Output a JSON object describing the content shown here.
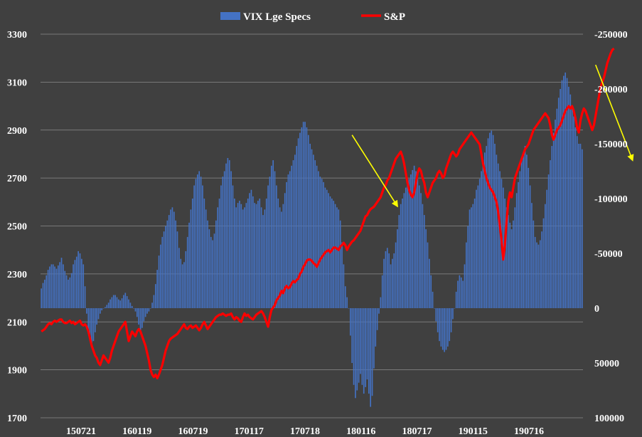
{
  "chart_data": {
    "type": "bar+line",
    "title": "",
    "xlabel": "",
    "ylabel": "",
    "x_ticks": [
      "150721",
      "160119",
      "160719",
      "170117",
      "170718",
      "180116",
      "180717",
      "190115",
      "190716"
    ],
    "left_axis": {
      "ylim": [
        1700,
        3300
      ],
      "ticks": [
        1700,
        1900,
        2100,
        2300,
        2500,
        2700,
        2900,
        3100,
        3300
      ]
    },
    "right_axis": {
      "ylim": [
        100000,
        -250000
      ],
      "inverted": true,
      "ticks": [
        100000,
        50000,
        0,
        -50000,
        -100000,
        -150000,
        -200000,
        -250000
      ],
      "tick_labels": [
        "100000",
        "50000",
        "0",
        "-50000",
        "-100000",
        "-150000",
        "-200000",
        "-250000"
      ]
    },
    "grid": true,
    "legend": "top-center",
    "series": [
      {
        "name": "VIX Lge Specs",
        "type": "bar",
        "axis": "right",
        "color": "#4472c4",
        "values": [
          -18000,
          -23000,
          -26000,
          -30000,
          -35000,
          -38000,
          -40000,
          -40000,
          -38000,
          -36000,
          -39000,
          -42000,
          -46000,
          -40000,
          -34000,
          -30000,
          -26000,
          -28000,
          -32000,
          -40000,
          -44000,
          -47000,
          -52000,
          -50000,
          -45000,
          -40000,
          -20000,
          5000,
          20000,
          30000,
          35000,
          30000,
          22000,
          15000,
          10000,
          5000,
          2000,
          0,
          -1000,
          -3000,
          -5000,
          -8000,
          -10000,
          -12000,
          -12000,
          -10000,
          -8000,
          -7000,
          -9000,
          -12000,
          -14000,
          -11000,
          -8000,
          -5000,
          -2000,
          0,
          3000,
          8000,
          15000,
          20000,
          18000,
          12000,
          8000,
          5000,
          3000,
          0,
          -5000,
          -12000,
          -22000,
          -35000,
          -48000,
          -58000,
          -65000,
          -70000,
          -75000,
          -80000,
          -85000,
          -90000,
          -92000,
          -88000,
          -80000,
          -70000,
          -55000,
          -45000,
          -40000,
          -42000,
          -52000,
          -65000,
          -78000,
          -90000,
          -100000,
          -112000,
          -118000,
          -122000,
          -125000,
          -120000,
          -112000,
          -100000,
          -90000,
          -80000,
          -72000,
          -65000,
          -62000,
          -68000,
          -80000,
          -92000,
          -100000,
          -112000,
          -120000,
          -125000,
          -132000,
          -137000,
          -135000,
          -125000,
          -112000,
          -100000,
          -92000,
          -96000,
          -98000,
          -95000,
          -90000,
          -92000,
          -96000,
          -100000,
          -105000,
          -108000,
          -102000,
          -96000,
          -95000,
          -98000,
          -100000,
          -92000,
          -85000,
          -90000,
          -100000,
          -112000,
          -120000,
          -130000,
          -135000,
          -125000,
          -112000,
          -100000,
          -92000,
          -88000,
          -95000,
          -105000,
          -115000,
          -122000,
          -125000,
          -130000,
          -135000,
          -140000,
          -148000,
          -155000,
          -160000,
          -165000,
          -170000,
          -170000,
          -165000,
          -158000,
          -150000,
          -145000,
          -140000,
          -135000,
          -130000,
          -125000,
          -120000,
          -118000,
          -115000,
          -110000,
          -108000,
          -105000,
          -102000,
          -100000,
          -98000,
          -95000,
          -92000,
          -90000,
          -80000,
          -60000,
          -40000,
          -20000,
          -10000,
          0,
          25000,
          50000,
          70000,
          82000,
          75000,
          68000,
          60000,
          70000,
          78000,
          72000,
          65000,
          78000,
          90000,
          80000,
          55000,
          35000,
          20000,
          5000,
          -10000,
          -30000,
          -45000,
          -52000,
          -55000,
          -50000,
          -40000,
          -45000,
          -50000,
          -60000,
          -72000,
          -85000,
          -95000,
          -100000,
          -105000,
          -110000,
          -115000,
          -118000,
          -122000,
          -126000,
          -130000,
          -125000,
          -118000,
          -112000,
          -105000,
          -95000,
          -85000,
          -72000,
          -60000,
          -45000,
          -30000,
          -15000,
          0,
          12000,
          22000,
          30000,
          35000,
          38000,
          40000,
          38000,
          35000,
          30000,
          22000,
          10000,
          0,
          -15000,
          -25000,
          -30000,
          -28000,
          -25000,
          -40000,
          -60000,
          -75000,
          -90000,
          -92000,
          -95000,
          -100000,
          -108000,
          -112000,
          -118000,
          -125000,
          -135000,
          -142000,
          -148000,
          -155000,
          -160000,
          -162000,
          -158000,
          -150000,
          -140000,
          -132000,
          -125000,
          -118000,
          -110000,
          -100000,
          -92000,
          -85000,
          -78000,
          -72000,
          -80000,
          -92000,
          -105000,
          -115000,
          -125000,
          -135000,
          -142000,
          -148000,
          -140000,
          -128000,
          -112000,
          -96000,
          -80000,
          -65000,
          -60000,
          -58000,
          -62000,
          -70000,
          -82000,
          -95000,
          -108000,
          -122000,
          -135000,
          -148000,
          -160000,
          -172000,
          -182000,
          -192000,
          -200000,
          -208000,
          -212000,
          -215000,
          -210000,
          -202000,
          -195000,
          -185000,
          -175000,
          -165000,
          -157000,
          -150000,
          -150000,
          -145000
        ]
      },
      {
        "name": "S&P",
        "type": "line",
        "axis": "left",
        "color": "#ff0000",
        "values": [
          2060,
          2065,
          2070,
          2080,
          2090,
          2095,
          2090,
          2100,
          2105,
          2100,
          2105,
          2110,
          2110,
          2100,
          2095,
          2095,
          2100,
          2105,
          2095,
          2100,
          2090,
          2095,
          2100,
          2105,
          2090,
          2085,
          2090,
          2080,
          2060,
          2030,
          2000,
          1980,
          1960,
          1950,
          1930,
          1920,
          1940,
          1960,
          1950,
          1940,
          1930,
          1950,
          1980,
          2000,
          2020,
          2040,
          2060,
          2070,
          2080,
          2090,
          2100,
          2060,
          2020,
          2040,
          2060,
          2050,
          2040,
          2060,
          2070,
          2060,
          2040,
          2020,
          2000,
          1970,
          1940,
          1900,
          1880,
          1870,
          1880,
          1865,
          1880,
          1900,
          1920,
          1950,
          1980,
          2000,
          2020,
          2030,
          2035,
          2040,
          2045,
          2050,
          2060,
          2070,
          2080,
          2090,
          2075,
          2070,
          2080,
          2085,
          2075,
          2080,
          2085,
          2075,
          2065,
          2075,
          2090,
          2100,
          2085,
          2070,
          2080,
          2090,
          2100,
          2110,
          2120,
          2125,
          2130,
          2130,
          2135,
          2130,
          2125,
          2130,
          2130,
          2135,
          2120,
          2110,
          2120,
          2115,
          2105,
          2100,
          2120,
          2135,
          2125,
          2130,
          2120,
          2115,
          2110,
          2120,
          2130,
          2135,
          2140,
          2145,
          2135,
          2120,
          2100,
          2080,
          2120,
          2150,
          2160,
          2170,
          2190,
          2200,
          2210,
          2230,
          2220,
          2240,
          2250,
          2240,
          2245,
          2260,
          2270,
          2265,
          2275,
          2280,
          2300,
          2310,
          2330,
          2340,
          2355,
          2360,
          2360,
          2355,
          2345,
          2340,
          2330,
          2345,
          2360,
          2370,
          2380,
          2390,
          2395,
          2400,
          2390,
          2400,
          2410,
          2410,
          2405,
          2400,
          2415,
          2420,
          2430,
          2420,
          2400,
          2415,
          2425,
          2435,
          2440,
          2450,
          2460,
          2470,
          2480,
          2500,
          2520,
          2540,
          2545,
          2560,
          2570,
          2575,
          2580,
          2590,
          2600,
          2610,
          2620,
          2640,
          2660,
          2670,
          2690,
          2700,
          2720,
          2740,
          2760,
          2780,
          2790,
          2800,
          2810,
          2790,
          2760,
          2720,
          2680,
          2650,
          2630,
          2620,
          2640,
          2680,
          2720,
          2740,
          2730,
          2700,
          2680,
          2640,
          2620,
          2640,
          2660,
          2680,
          2690,
          2700,
          2720,
          2730,
          2720,
          2700,
          2710,
          2740,
          2760,
          2780,
          2800,
          2810,
          2800,
          2790,
          2800,
          2820,
          2830,
          2840,
          2850,
          2860,
          2870,
          2880,
          2890,
          2880,
          2870,
          2860,
          2850,
          2840,
          2800,
          2760,
          2730,
          2700,
          2680,
          2660,
          2650,
          2640,
          2620,
          2600,
          2560,
          2500,
          2440,
          2360,
          2420,
          2520,
          2600,
          2640,
          2620,
          2660,
          2700,
          2720,
          2740,
          2760,
          2780,
          2800,
          2820,
          2830,
          2840,
          2860,
          2880,
          2900,
          2910,
          2920,
          2930,
          2940,
          2950,
          2960,
          2970,
          2960,
          2950,
          2920,
          2880,
          2860,
          2880,
          2900,
          2910,
          2920,
          2940,
          2960,
          2980,
          2990,
          3000,
          2990,
          3000,
          2980,
          2950,
          2910,
          2890,
          2940,
          2970,
          2990,
          2980,
          2960,
          2940,
          2920,
          2900,
          2920,
          2960,
          3000,
          3040,
          3080,
          3100,
          3120,
          3150,
          3180,
          3200,
          3220,
          3235,
          3240
        ]
      }
    ],
    "annotations": [
      {
        "type": "arrow",
        "color": "#ffff00",
        "from": {
          "index": 185,
          "value": -158000
        },
        "to": {
          "index": 212,
          "value": -93000
        }
      },
      {
        "type": "arrow",
        "color": "#ffff00",
        "from": {
          "index": 330,
          "value": -222000
        },
        "to": {
          "index": 352,
          "value": -135000
        }
      }
    ]
  }
}
